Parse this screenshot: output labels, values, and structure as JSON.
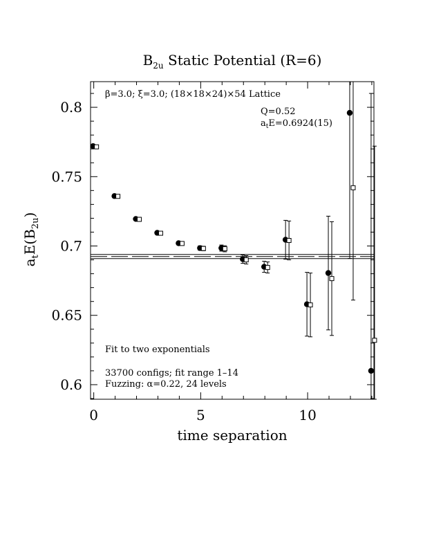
{
  "chart_data": {
    "type": "scatter",
    "title_main": "B",
    "title_sub": "2u",
    "title_rest": " Static Potential (R=6)",
    "xlabel": "time separation",
    "ylabel_a": "a",
    "ylabel_t": "t",
    "ylabel_E": "E(B",
    "ylabel_sub": "2u",
    "ylabel_close": ")",
    "xlim": [
      -0.15,
      13.1
    ],
    "ylim": [
      0.5895,
      0.8185
    ],
    "x_ticks": [
      0,
      5,
      10
    ],
    "x_ticklabels": [
      "0",
      "5",
      "10"
    ],
    "y_ticks": [
      0.6,
      0.65,
      0.7,
      0.75,
      0.8
    ],
    "y_ticklabels": [
      "0.6",
      "0.65",
      "0.7",
      "0.75",
      "0.8"
    ],
    "annotations": {
      "lattice": "β=3.0; ξ=3.0; (18×18×24)×54 Lattice",
      "q_value": "Q=0.52",
      "energy_a": "a",
      "energy_t": "t",
      "energy_rest": "E=0.6924(15)",
      "fit_type": "Fit to two exponentials",
      "configs": "33700 configs; fit range 1–14",
      "fuzzing": "Fuzzing: α=0.22, 24 levels"
    },
    "fit": {
      "value": 0.6924,
      "error": 0.0015
    },
    "series": [
      {
        "marker": "filled-circle",
        "points": [
          {
            "x": 0,
            "y": 0.772,
            "err": 0.0006
          },
          {
            "x": 1,
            "y": 0.736,
            "err": 0.0007
          },
          {
            "x": 2,
            "y": 0.7195,
            "err": 0.0009
          },
          {
            "x": 3,
            "y": 0.7095,
            "err": 0.001
          },
          {
            "x": 4,
            "y": 0.702,
            "err": 0.0012
          },
          {
            "x": 5,
            "y": 0.6985,
            "err": 0.0016
          },
          {
            "x": 6,
            "y": 0.6985,
            "err": 0.0022
          },
          {
            "x": 7,
            "y": 0.6905,
            "err": 0.003
          },
          {
            "x": 8,
            "y": 0.685,
            "err": 0.004
          },
          {
            "x": 9,
            "y": 0.7045,
            "err": 0.014
          },
          {
            "x": 10,
            "y": 0.658,
            "err": 0.023
          },
          {
            "x": 11,
            "y": 0.6805,
            "err": 0.041
          },
          {
            "x": 12,
            "y": 0.796,
            "err": 0.105
          },
          {
            "x": 13,
            "y": 0.61,
            "err": 0.2
          }
        ]
      },
      {
        "marker": "open-square",
        "points": [
          {
            "x": 0,
            "y": 0.7715,
            "err": 0.0006
          },
          {
            "x": 1,
            "y": 0.7358,
            "err": 0.0007
          },
          {
            "x": 2,
            "y": 0.7192,
            "err": 0.0009
          },
          {
            "x": 3,
            "y": 0.7092,
            "err": 0.001
          },
          {
            "x": 4,
            "y": 0.7018,
            "err": 0.0012
          },
          {
            "x": 5,
            "y": 0.6982,
            "err": 0.0016
          },
          {
            "x": 6,
            "y": 0.698,
            "err": 0.0022
          },
          {
            "x": 7,
            "y": 0.69,
            "err": 0.003
          },
          {
            "x": 8,
            "y": 0.6845,
            "err": 0.004
          },
          {
            "x": 9,
            "y": 0.704,
            "err": 0.014
          },
          {
            "x": 10,
            "y": 0.6575,
            "err": 0.023
          },
          {
            "x": 11,
            "y": 0.6765,
            "err": 0.041
          },
          {
            "x": 12,
            "y": 0.742,
            "err": 0.081
          },
          {
            "x": 13,
            "y": 0.632,
            "err": 0.14
          }
        ]
      }
    ]
  }
}
